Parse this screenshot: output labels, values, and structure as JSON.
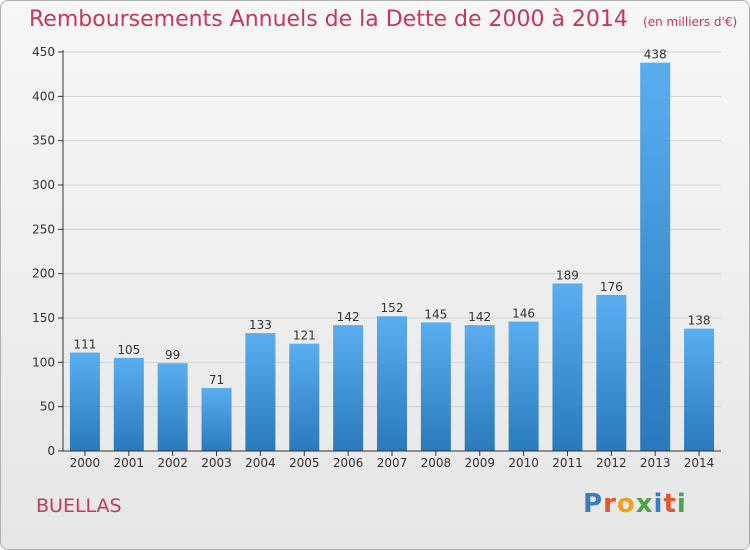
{
  "header": {
    "title": "Remboursements Annuels de la Dette de 2000 à 2014",
    "unit": "(en milliers d'€)"
  },
  "footer": {
    "town": "BUELLAS",
    "brand": "Proxiti",
    "brand_letters": [
      {
        "char": "P",
        "color": "#3b7bbf"
      },
      {
        "char": "r",
        "color": "#e8552b"
      },
      {
        "char": "o",
        "color": "#f0a21c"
      },
      {
        "char": "x",
        "color": "#4aa54a"
      },
      {
        "char": "i",
        "color": "#3b7bbf"
      },
      {
        "char": "t",
        "color": "#e8552b"
      },
      {
        "char": "i",
        "color": "#4aa54a"
      }
    ]
  },
  "colors": {
    "title": "#c8385a",
    "bar_top": "#5aaef0",
    "bar_bottom": "#2a79bd",
    "grid": "#d3d3d3",
    "axis": "#333333"
  },
  "chart_data": {
    "type": "bar",
    "title": "Remboursements Annuels de la Dette de 2000 à 2014",
    "subtitle": "(en milliers d'€)",
    "xlabel": "",
    "ylabel": "",
    "categories": [
      "2000",
      "2001",
      "2002",
      "2003",
      "2004",
      "2005",
      "2006",
      "2007",
      "2008",
      "2009",
      "2010",
      "2011",
      "2012",
      "2013",
      "2014"
    ],
    "values": [
      111,
      105,
      99,
      71,
      133,
      121,
      142,
      152,
      145,
      142,
      146,
      189,
      176,
      438,
      138
    ],
    "ylim": [
      0,
      450
    ],
    "yticks": [
      0,
      50,
      100,
      150,
      200,
      250,
      300,
      350,
      400,
      450
    ],
    "grid": true,
    "data_labels": true
  }
}
